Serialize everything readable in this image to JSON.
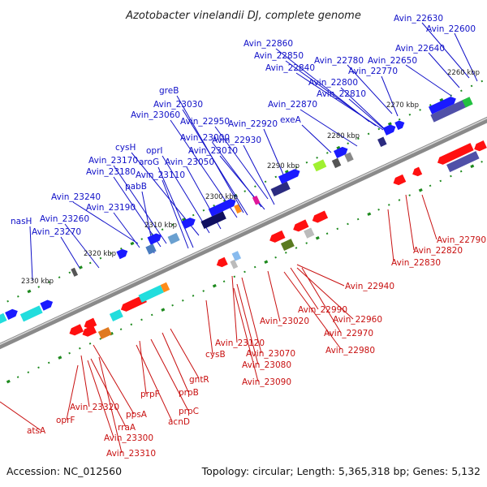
{
  "title": "Azotobacter vinelandii DJ, complete genome",
  "footer": {
    "accession": "Accession: NC_012560",
    "topology": "Topology: circular; Length: 5,365,318 bp; Genes: 5,132"
  },
  "colors": {
    "forward_label": "#1010c8",
    "reverse_label": "#c81010",
    "forward_cds": "#1a1aff",
    "reverse_cds": "#ff1010",
    "backbone": "#8a8a8a",
    "tick": "#1e8a1e"
  },
  "kbp_labels": [
    "2260 kbp",
    "2270 kbp",
    "2280 kbp",
    "2290 kbp",
    "2300 kbp",
    "2310 kbp",
    "2320 kbp",
    "2330 kbp"
  ],
  "forward_labels": [
    "Avin_22630",
    "Avin_22600",
    "Avin_22640",
    "Avin_22650",
    "Avin_22860",
    "Avin_22850",
    "Avin_22840",
    "Avin_22780",
    "Avin_22770",
    "Avin_22800",
    "Avin_22810",
    "Avin_22870",
    "exeA",
    "greB",
    "Avin_23030",
    "Avin_23060",
    "Avin_22950",
    "Avin_22920",
    "Avin_23000",
    "Avin_22930",
    "Avin_23010",
    "cysH",
    "oprI",
    "aroG",
    "Avin_23050",
    "Avin_23170",
    "Avin_23180",
    "Avin_23110",
    "pabB",
    "Avin_23240",
    "Avin_23190",
    "Avin_23260",
    "nasH",
    "Avin_23270"
  ],
  "reverse_labels": [
    "Avin_22790",
    "Avin_22820",
    "Avin_22830",
    "Avin_22940",
    "Avin_22990",
    "Avin_22960",
    "Avin_22970",
    "Avin_22980",
    "Avin_23020",
    "Avin_23120",
    "Avin_23070",
    "cysB",
    "Avin_23080",
    "Avin_23090",
    "gntR",
    "prpB",
    "prpC",
    "prpF",
    "acnD",
    "ppsA",
    "Avin_23320",
    "oprF",
    "rraA",
    "Avin_23300",
    "Avin_23310",
    "atsA"
  ]
}
